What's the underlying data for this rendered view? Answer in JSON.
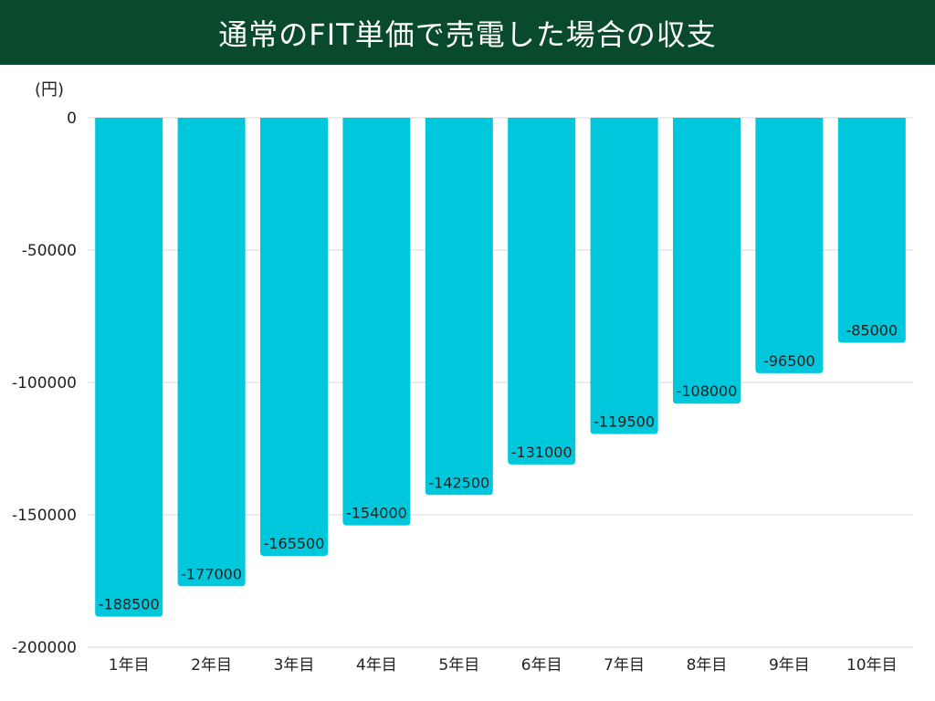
{
  "header": {
    "title": "通常のFIT単価で売電した場合の収支"
  },
  "colors": {
    "header_bg": "#0a4a2c",
    "bar": "#00c8dc",
    "grid": "#d9d9d9",
    "text": "#222222"
  },
  "chart_data": {
    "type": "bar",
    "title": "通常のFIT単価で売電した場合の収支",
    "ylabel": "(円)",
    "xlabel": "",
    "categories": [
      "1年目",
      "2年目",
      "3年目",
      "4年目",
      "5年目",
      "6年目",
      "7年目",
      "8年目",
      "9年目",
      "10年目"
    ],
    "values": [
      -188500,
      -177000,
      -165500,
      -154000,
      -142500,
      -131000,
      -119500,
      -108000,
      -96500,
      -85000
    ],
    "data_labels": [
      "-188500",
      "-177000",
      "-165500",
      "-154000",
      "-142500",
      "-131000",
      "-119500",
      "-108000",
      "-96500",
      "-85000"
    ],
    "yticks": [
      0,
      -50000,
      -100000,
      -150000,
      -200000
    ],
    "ytick_labels": [
      "0",
      "-50000",
      "-100000",
      "-150000",
      "-200000"
    ],
    "ylim": [
      -200000,
      0
    ],
    "grid": true,
    "legend": "none"
  }
}
